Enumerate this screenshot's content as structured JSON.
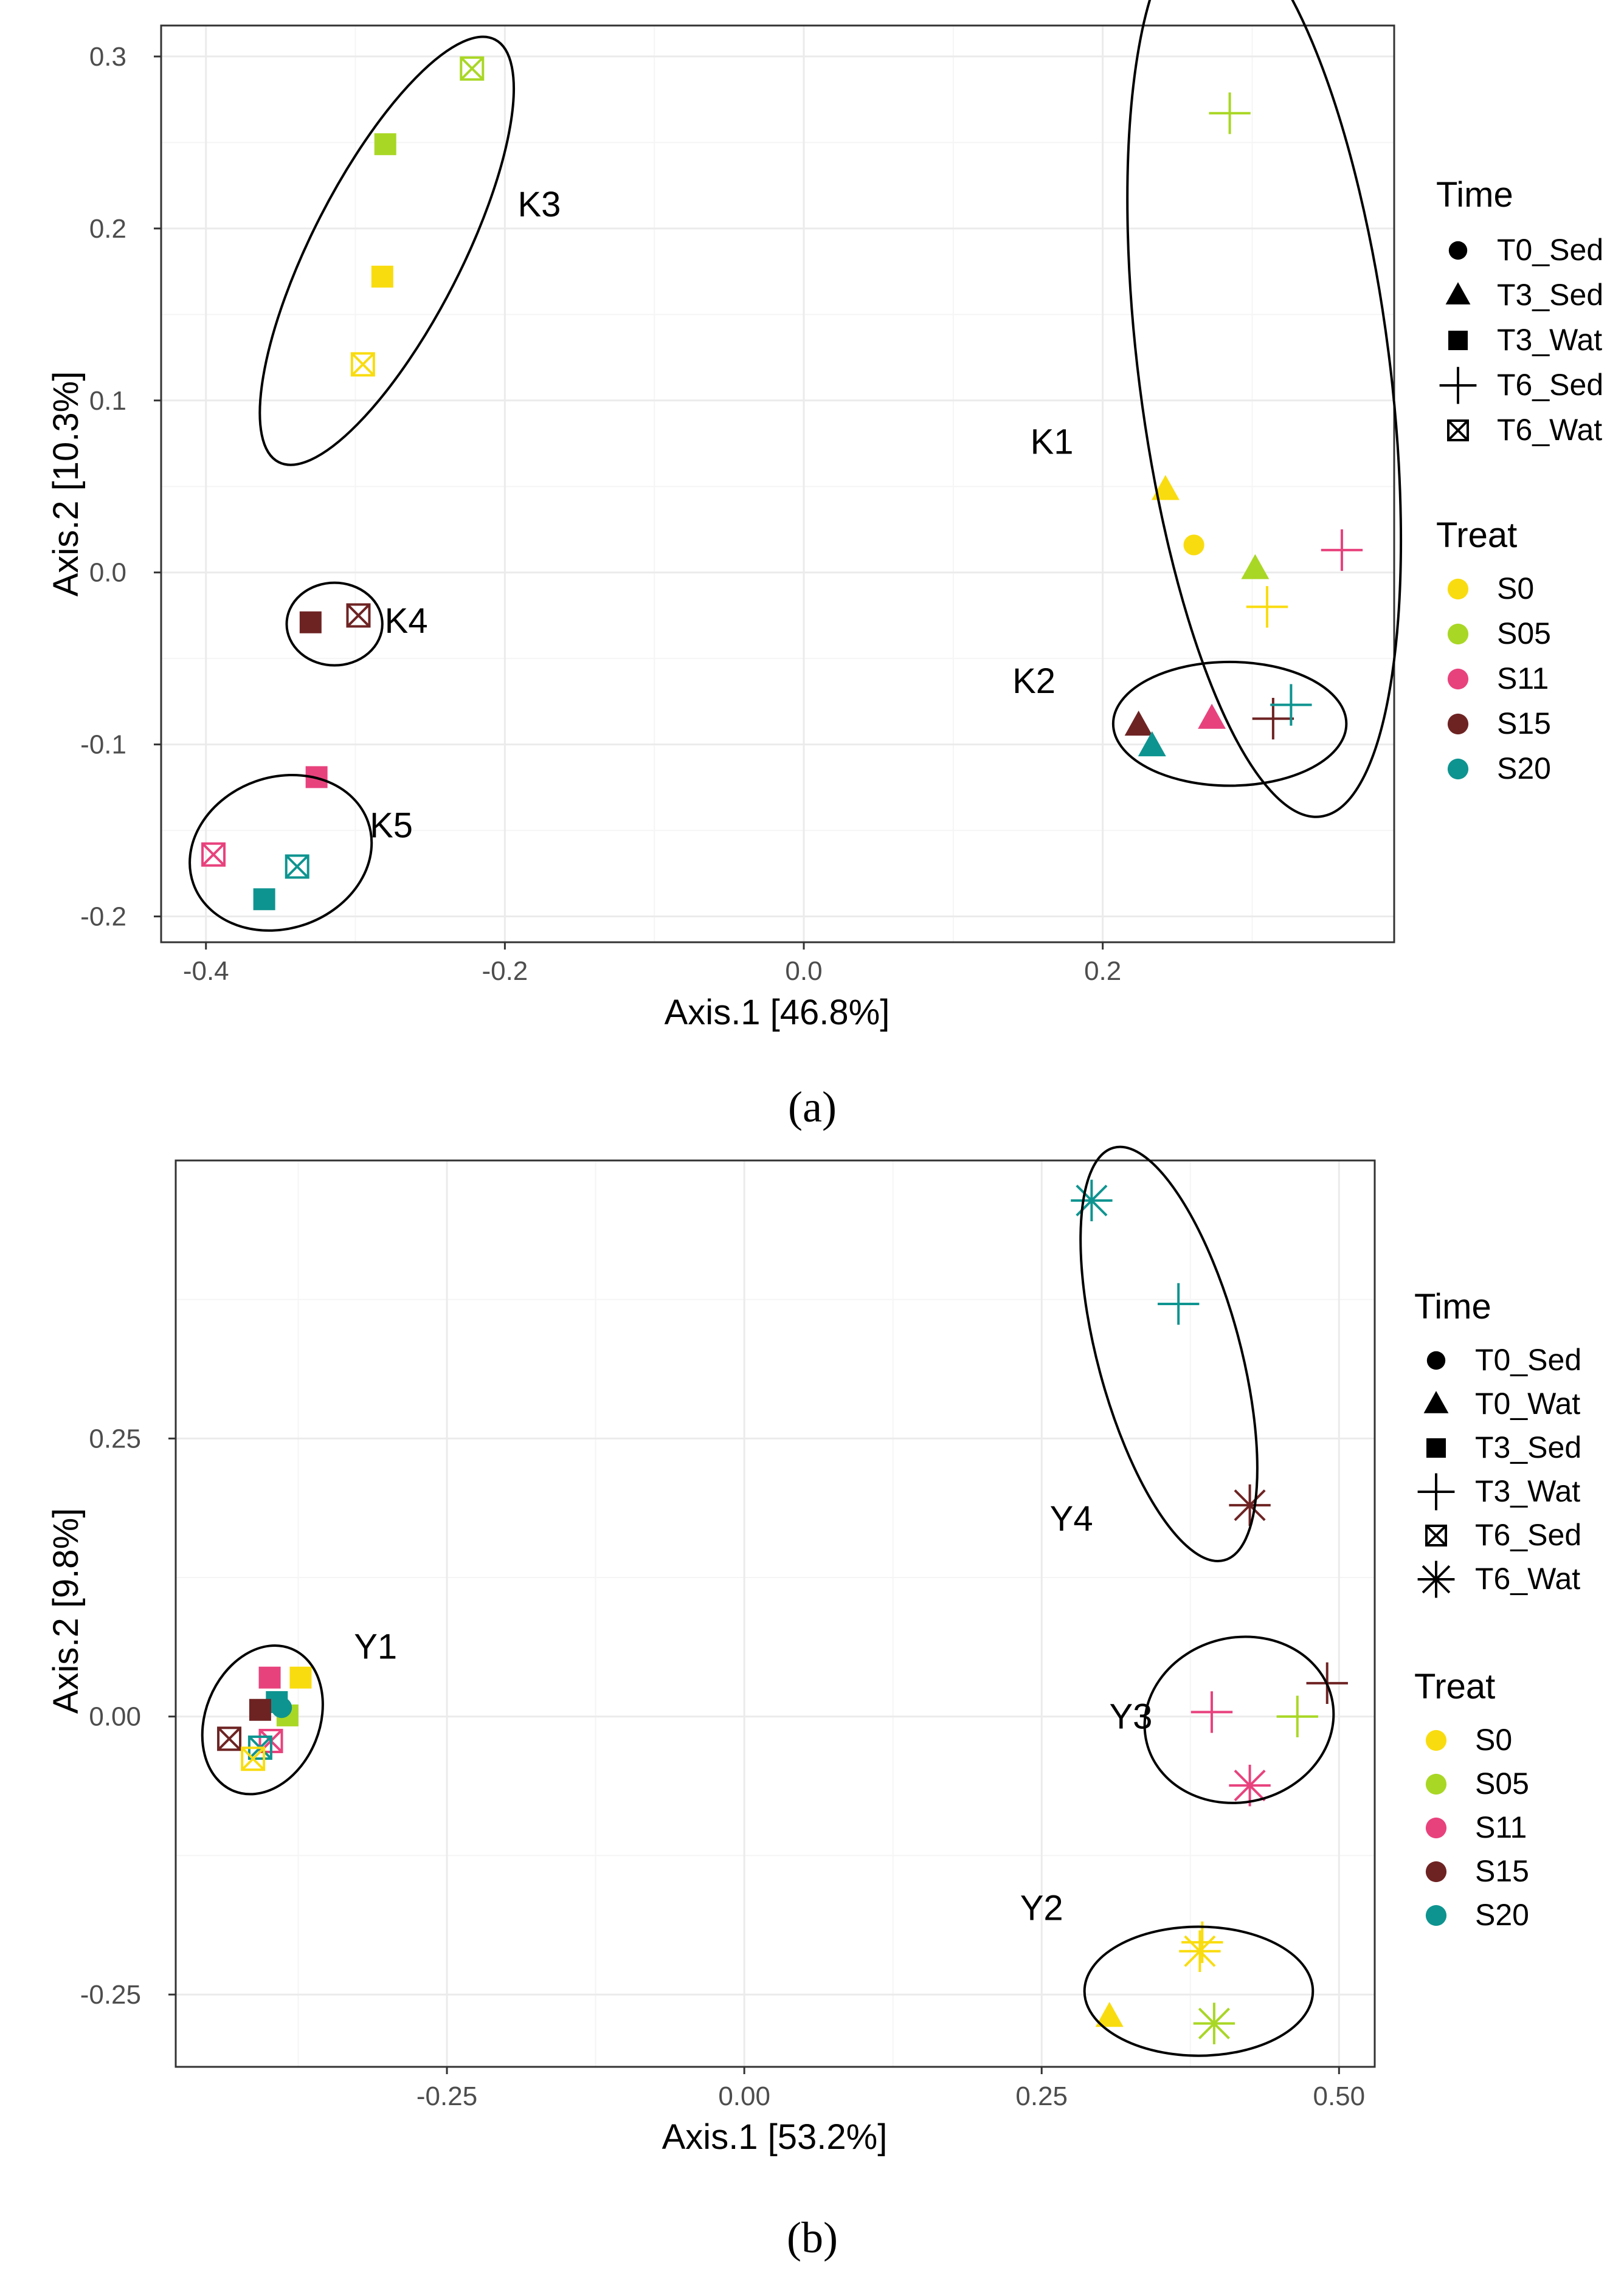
{
  "chart_data": [
    {
      "type": "scatter",
      "panel_label": "(a)",
      "xlabel": "Axis.1   [46.8%]",
      "ylabel": "Axis.2   [10.3%]",
      "xlim": [
        -0.43,
        0.395
      ],
      "ylim": [
        -0.215,
        0.318
      ],
      "xticks": [
        -0.4,
        -0.2,
        0.0,
        0.2
      ],
      "xtick_labels": [
        "-0.4",
        "-0.2",
        "0.0",
        "0.2"
      ],
      "yticks": [
        -0.2,
        -0.1,
        0.0,
        0.1,
        0.2,
        0.3
      ],
      "ytick_labels": [
        "-0.2",
        "-0.1",
        "0.0",
        "0.1",
        "0.2",
        "0.3"
      ],
      "legend_time": {
        "title": "Time",
        "items": [
          {
            "label": "T0_Sed",
            "shape": "circle"
          },
          {
            "label": "T3_Sed",
            "shape": "triangle"
          },
          {
            "label": "T3_Wat",
            "shape": "square"
          },
          {
            "label": "T6_Sed",
            "shape": "plus"
          },
          {
            "label": "T6_Wat",
            "shape": "boxx"
          }
        ]
      },
      "legend_treat": {
        "title": "Treat",
        "items": [
          {
            "label": "S0",
            "color": "#f9dc0f"
          },
          {
            "label": "S05",
            "color": "#a9d725"
          },
          {
            "label": "S11",
            "color": "#e8427d"
          },
          {
            "label": "S15",
            "color": "#6e2323"
          },
          {
            "label": "S20",
            "color": "#0e9490"
          }
        ]
      },
      "clusters": [
        {
          "label": "K1",
          "cx": 0.308,
          "cy": 0.118,
          "rx": 0.084,
          "ry": 0.262,
          "angle": -7.2,
          "label_x": 0.166,
          "label_y": 0.076
        },
        {
          "label": "K2",
          "cx": 0.285,
          "cy": -0.088,
          "rx": 0.078,
          "ry": 0.036,
          "angle": 0,
          "label_x": 0.154,
          "label_y": -0.063
        },
        {
          "label": "K3",
          "cx": -0.279,
          "cy": 0.187,
          "rx": 0.05,
          "ry": 0.138,
          "angle": 27.1,
          "label_x": -0.177,
          "label_y": 0.214
        },
        {
          "label": "K4",
          "cx": -0.314,
          "cy": -0.03,
          "rx": 0.032,
          "ry": 0.024,
          "angle": 0,
          "label_x": -0.266,
          "label_y": -0.028
        },
        {
          "label": "K5",
          "cx": -0.35,
          "cy": -0.163,
          "rx": 0.062,
          "ry": 0.044,
          "angle": -19.5,
          "label_x": -0.276,
          "label_y": -0.147
        }
      ],
      "points": [
        {
          "x": 0.285,
          "y": 0.267,
          "time": "T6_Sed",
          "treat": "S05"
        },
        {
          "x": 0.242,
          "y": 0.048,
          "time": "T3_Sed",
          "treat": "S0"
        },
        {
          "x": 0.261,
          "y": 0.016,
          "time": "T0_Sed",
          "treat": "S0"
        },
        {
          "x": 0.302,
          "y": 0.002,
          "time": "T3_Sed",
          "treat": "S05"
        },
        {
          "x": 0.36,
          "y": 0.013,
          "time": "T6_Sed",
          "treat": "S11"
        },
        {
          "x": 0.31,
          "y": -0.02,
          "time": "T6_Sed",
          "treat": "S0"
        },
        {
          "x": 0.224,
          "y": -0.089,
          "time": "T3_Sed",
          "treat": "S15"
        },
        {
          "x": 0.233,
          "y": -0.101,
          "time": "T3_Sed",
          "treat": "S20"
        },
        {
          "x": 0.273,
          "y": -0.085,
          "time": "T3_Sed",
          "treat": "S11"
        },
        {
          "x": 0.314,
          "y": -0.085,
          "time": "T6_Sed",
          "treat": "S15"
        },
        {
          "x": 0.326,
          "y": -0.077,
          "time": "T6_Sed",
          "treat": "S20"
        },
        {
          "x": -0.222,
          "y": 0.293,
          "time": "T6_Wat",
          "treat": "S05"
        },
        {
          "x": -0.28,
          "y": 0.249,
          "time": "T3_Wat",
          "treat": "S05"
        },
        {
          "x": -0.282,
          "y": 0.172,
          "time": "T3_Wat",
          "treat": "S0"
        },
        {
          "x": -0.295,
          "y": 0.121,
          "time": "T6_Wat",
          "treat": "S0"
        },
        {
          "x": -0.33,
          "y": -0.029,
          "time": "T3_Wat",
          "treat": "S15"
        },
        {
          "x": -0.298,
          "y": -0.025,
          "time": "T6_Wat",
          "treat": "S15"
        },
        {
          "x": -0.326,
          "y": -0.119,
          "time": "T3_Wat",
          "treat": "S11"
        },
        {
          "x": -0.395,
          "y": -0.164,
          "time": "T6_Wat",
          "treat": "S11"
        },
        {
          "x": -0.339,
          "y": -0.171,
          "time": "T6_Wat",
          "treat": "S20"
        },
        {
          "x": -0.361,
          "y": -0.19,
          "time": "T3_Wat",
          "treat": "S20"
        }
      ]
    },
    {
      "type": "scatter",
      "panel_label": "(b)",
      "xlabel": "Axis.1   [53.2%]",
      "ylabel": "Axis.2   [9.8%]",
      "xlim": [
        -0.478,
        0.53
      ],
      "ylim": [
        -0.315,
        0.5
      ],
      "xticks": [
        -0.25,
        0.0,
        0.25,
        0.5
      ],
      "xtick_labels": [
        "-0.25",
        "0.00",
        "0.25",
        "0.50"
      ],
      "yticks": [
        -0.25,
        0.0,
        0.25
      ],
      "ytick_labels": [
        "-0.25",
        "0.00",
        "0.25"
      ],
      "legend_time": {
        "title": "Time",
        "items": [
          {
            "label": "T0_Sed",
            "shape": "circle"
          },
          {
            "label": "T0_Wat",
            "shape": "triangle"
          },
          {
            "label": "T3_Sed",
            "shape": "square"
          },
          {
            "label": "T3_Wat",
            "shape": "plus"
          },
          {
            "label": "T6_Sed",
            "shape": "boxx"
          },
          {
            "label": "T6_Wat",
            "shape": "asterisk"
          }
        ]
      },
      "legend_treat": {
        "title": "Treat",
        "items": [
          {
            "label": "S0",
            "color": "#f9dc0f"
          },
          {
            "label": "S05",
            "color": "#a9d725"
          },
          {
            "label": "S11",
            "color": "#e8427d"
          },
          {
            "label": "S15",
            "color": "#6e2323"
          },
          {
            "label": "S20",
            "color": "#0e9490"
          }
        ]
      },
      "clusters": [
        {
          "label": "Y1",
          "cx": -0.405,
          "cy": -0.003,
          "rx": 0.048,
          "ry": 0.069,
          "angle": 22,
          "label_x": -0.31,
          "label_y": 0.063
        },
        {
          "label": "Y2",
          "cx": 0.382,
          "cy": -0.247,
          "rx": 0.096,
          "ry": 0.058,
          "angle": 0,
          "label_x": 0.25,
          "label_y": -0.172
        },
        {
          "label": "Y3",
          "cx": 0.416,
          "cy": -0.003,
          "rx": 0.08,
          "ry": 0.074,
          "angle": -14,
          "label_x": 0.325,
          "label_y": 0.0
        },
        {
          "label": "Y4",
          "cx": 0.357,
          "cy": 0.326,
          "rx": 0.06,
          "ry": 0.192,
          "angle": -15,
          "label_x": 0.275,
          "label_y": 0.178
        }
      ],
      "points": [
        {
          "x": 0.292,
          "y": 0.464,
          "time": "T6_Wat",
          "treat": "S20"
        },
        {
          "x": 0.365,
          "y": 0.371,
          "time": "T3_Wat",
          "treat": "S20"
        },
        {
          "x": 0.425,
          "y": 0.19,
          "time": "T6_Wat",
          "treat": "S15"
        },
        {
          "x": 0.49,
          "y": 0.03,
          "time": "T3_Wat",
          "treat": "S15"
        },
        {
          "x": 0.393,
          "y": 0.004,
          "time": "T3_Wat",
          "treat": "S11"
        },
        {
          "x": 0.465,
          "y": 0.0,
          "time": "T3_Wat",
          "treat": "S05"
        },
        {
          "x": 0.425,
          "y": -0.062,
          "time": "T6_Wat",
          "treat": "S11"
        },
        {
          "x": 0.385,
          "y": -0.203,
          "time": "T3_Wat",
          "treat": "S0"
        },
        {
          "x": 0.383,
          "y": -0.211,
          "time": "T6_Wat",
          "treat": "S0"
        },
        {
          "x": 0.395,
          "y": -0.276,
          "time": "T6_Wat",
          "treat": "S05"
        },
        {
          "x": 0.307,
          "y": -0.27,
          "time": "T0_Wat",
          "treat": "S0"
        },
        {
          "x": -0.373,
          "y": 0.035,
          "time": "T3_Sed",
          "treat": "S0"
        },
        {
          "x": -0.399,
          "y": 0.035,
          "time": "T3_Sed",
          "treat": "S11"
        },
        {
          "x": -0.384,
          "y": 0.001,
          "time": "T3_Sed",
          "treat": "S05"
        },
        {
          "x": -0.393,
          "y": 0.013,
          "time": "T3_Sed",
          "treat": "S20"
        },
        {
          "x": -0.407,
          "y": 0.006,
          "time": "T3_Sed",
          "treat": "S15"
        },
        {
          "x": -0.389,
          "y": 0.008,
          "time": "T0_Sed",
          "treat": "S20"
        },
        {
          "x": -0.433,
          "y": -0.02,
          "time": "T6_Sed",
          "treat": "S15"
        },
        {
          "x": -0.398,
          "y": -0.022,
          "time": "T6_Sed",
          "treat": "S11"
        },
        {
          "x": -0.407,
          "y": -0.028,
          "time": "T6_Sed",
          "treat": "S20"
        },
        {
          "x": -0.413,
          "y": -0.038,
          "time": "T6_Sed",
          "treat": "S0"
        }
      ]
    }
  ]
}
